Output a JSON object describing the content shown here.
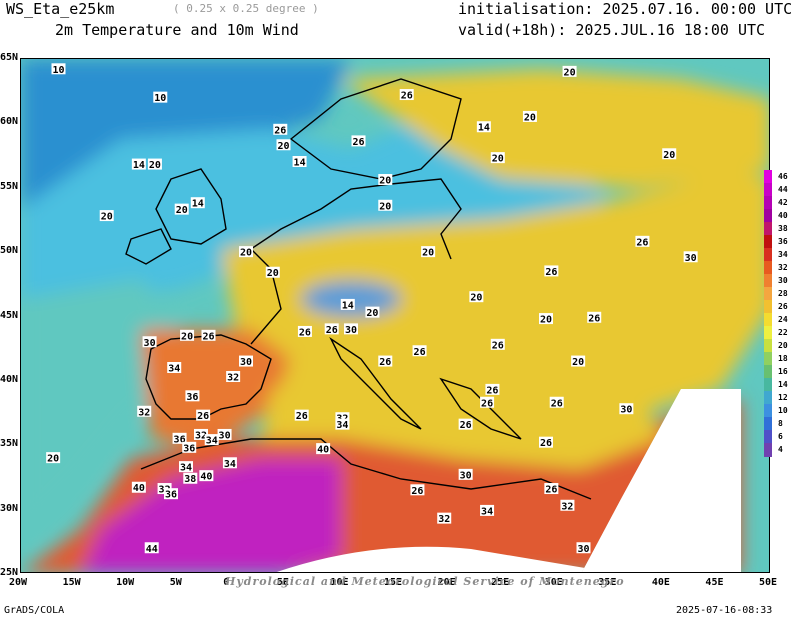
{
  "header": {
    "model": "WS_Eta_e25km",
    "resolution": "( 0.25 x 0.25 degree )",
    "field": "2m Temperature and 10m Wind",
    "init": "initialisation: 2025.07.16. 00:00 UTC",
    "valid": "valid(+18h): 2025.JUL.16 18:00 UTC"
  },
  "footer": {
    "software": "GrADS/COLA",
    "timestamp": "2025-07-16-08:33",
    "credit": "Hydrological and Meteorological Service of Montenegro"
  },
  "axes": {
    "x_ticks": [
      "20W",
      "15W",
      "10W",
      "5W",
      "0",
      "5E",
      "10E",
      "15E",
      "20E",
      "25E",
      "30E",
      "35E",
      "40E",
      "45E",
      "50E"
    ],
    "y_ticks": [
      "65N",
      "60N",
      "55N",
      "50N",
      "45N",
      "40N",
      "35N",
      "30N",
      "25N"
    ],
    "lon_range": [
      -20,
      50
    ],
    "lat_range": [
      25,
      65
    ]
  },
  "colorbar": {
    "levels": [
      "46",
      "44",
      "42",
      "40",
      "38",
      "36",
      "34",
      "32",
      "30",
      "28",
      "26",
      "24",
      "22",
      "20",
      "18",
      "16",
      "14",
      "12",
      "10",
      "8",
      "6",
      "4"
    ],
    "colors": [
      "#e000e0",
      "#c800c8",
      "#b400b4",
      "#a000a0",
      "#c0166b",
      "#c01010",
      "#d83020",
      "#e85a20",
      "#f08030",
      "#f4a640",
      "#f2c030",
      "#f4dc30",
      "#eef040",
      "#c8e040",
      "#90d060",
      "#68c070",
      "#48b8a0",
      "#40a8d0",
      "#3c90e0",
      "#3070d8",
      "#5050c8",
      "#7040b0"
    ]
  },
  "regions": {
    "land_fill": "#e8c830",
    "north_sea": "#4cc0e0",
    "atlantic_far": "#2c90d0",
    "atlantic_near": "#60c8c0",
    "sahara_hot": "#c020c0",
    "north_africa": "#e05a30",
    "iberia": "#e87830",
    "alps_cool": "#5a9cd8"
  },
  "labels": [
    {
      "t": "10",
      "lon": -16.5,
      "lat": 64.2
    },
    {
      "t": "10",
      "lon": -7,
      "lat": 62
    },
    {
      "t": "14",
      "lon": -9,
      "lat": 56.8
    },
    {
      "t": "20",
      "lon": -7.5,
      "lat": 56.8
    },
    {
      "t": "14",
      "lon": -3.5,
      "lat": 53.8
    },
    {
      "t": "20",
      "lon": -5,
      "lat": 53.3
    },
    {
      "t": "20",
      "lon": -12,
      "lat": 52.8
    },
    {
      "t": "20",
      "lon": 1,
      "lat": 50
    },
    {
      "t": "20",
      "lon": 3.5,
      "lat": 48.4
    },
    {
      "t": "26",
      "lon": 16,
      "lat": 62.2
    },
    {
      "t": "26",
      "lon": 4.2,
      "lat": 59.5
    },
    {
      "t": "20",
      "lon": 4.5,
      "lat": 58.3
    },
    {
      "t": "14",
      "lon": 6,
      "lat": 57
    },
    {
      "t": "26",
      "lon": 11.5,
      "lat": 58.6
    },
    {
      "t": "20",
      "lon": 14,
      "lat": 55.6
    },
    {
      "t": "20",
      "lon": 14,
      "lat": 53.6
    },
    {
      "t": "14",
      "lon": 23.2,
      "lat": 59.7
    },
    {
      "t": "20",
      "lon": 27.5,
      "lat": 60.5
    },
    {
      "t": "20",
      "lon": 31.2,
      "lat": 64
    },
    {
      "t": "20",
      "lon": 24.5,
      "lat": 57.3
    },
    {
      "t": "20",
      "lon": 40.5,
      "lat": 57.6
    },
    {
      "t": "20",
      "lon": 18,
      "lat": 50
    },
    {
      "t": "20",
      "lon": 22.5,
      "lat": 46.5
    },
    {
      "t": "26",
      "lon": 29.5,
      "lat": 48.5
    },
    {
      "t": "26",
      "lon": 38,
      "lat": 50.8
    },
    {
      "t": "30",
      "lon": 42.5,
      "lat": 49.6
    },
    {
      "t": "20",
      "lon": 29,
      "lat": 44.8
    },
    {
      "t": "26",
      "lon": 33.5,
      "lat": 44.9
    },
    {
      "t": "20",
      "lon": 32,
      "lat": 41.5
    },
    {
      "t": "14",
      "lon": 10.5,
      "lat": 45.9
    },
    {
      "t": "20",
      "lon": 12.8,
      "lat": 45.3
    },
    {
      "t": "26",
      "lon": 6.5,
      "lat": 43.8
    },
    {
      "t": "26",
      "lon": 9,
      "lat": 44
    },
    {
      "t": "30",
      "lon": 10.8,
      "lat": 44
    },
    {
      "t": "26",
      "lon": 14,
      "lat": 41.5
    },
    {
      "t": "26",
      "lon": 17.2,
      "lat": 42.3
    },
    {
      "t": "26",
      "lon": 24.5,
      "lat": 42.8
    },
    {
      "t": "26",
      "lon": 24,
      "lat": 39.3
    },
    {
      "t": "26",
      "lon": 23.5,
      "lat": 38.3
    },
    {
      "t": "26",
      "lon": 30,
      "lat": 38.3
    },
    {
      "t": "26",
      "lon": 21.5,
      "lat": 36.6
    },
    {
      "t": "30",
      "lon": 36.5,
      "lat": 37.8
    },
    {
      "t": "26",
      "lon": 29,
      "lat": 35.2
    },
    {
      "t": "26",
      "lon": 6.2,
      "lat": 37.3
    },
    {
      "t": "30",
      "lon": -8,
      "lat": 43
    },
    {
      "t": "20",
      "lon": -4.5,
      "lat": 43.5
    },
    {
      "t": "26",
      "lon": -2.5,
      "lat": 43.5
    },
    {
      "t": "30",
      "lon": 1,
      "lat": 41.5
    },
    {
      "t": "34",
      "lon": -5.7,
      "lat": 41
    },
    {
      "t": "32",
      "lon": -0.2,
      "lat": 40.3
    },
    {
      "t": "36",
      "lon": -4,
      "lat": 38.8
    },
    {
      "t": "32",
      "lon": -8.5,
      "lat": 37.6
    },
    {
      "t": "26",
      "lon": -3,
      "lat": 37.3
    },
    {
      "t": "36",
      "lon": -5.2,
      "lat": 35.5
    },
    {
      "t": "32",
      "lon": -3.2,
      "lat": 35.8
    },
    {
      "t": "34",
      "lon": -2.2,
      "lat": 35.4
    },
    {
      "t": "30",
      "lon": -1,
      "lat": 35.8
    },
    {
      "t": "36",
      "lon": -4.3,
      "lat": 34.8
    },
    {
      "t": "34",
      "lon": -4.6,
      "lat": 33.3
    },
    {
      "t": "38",
      "lon": -4.2,
      "lat": 32.4
    },
    {
      "t": "40",
      "lon": -2.7,
      "lat": 32.6
    },
    {
      "t": "34",
      "lon": -0.5,
      "lat": 33.6
    },
    {
      "t": "40",
      "lon": -9,
      "lat": 31.7
    },
    {
      "t": "32",
      "lon": -6.6,
      "lat": 31.6
    },
    {
      "t": "36",
      "lon": -6,
      "lat": 31.2
    },
    {
      "t": "44",
      "lon": -7.8,
      "lat": 27
    },
    {
      "t": "20",
      "lon": -17,
      "lat": 34
    },
    {
      "t": "32",
      "lon": 10,
      "lat": 37.1
    },
    {
      "t": "34",
      "lon": 10,
      "lat": 36.6
    },
    {
      "t": "40",
      "lon": 8.2,
      "lat": 34.7
    },
    {
      "t": "26",
      "lon": 17,
      "lat": 31.5
    },
    {
      "t": "30",
      "lon": 21.5,
      "lat": 32.7
    },
    {
      "t": "32",
      "lon": 19.5,
      "lat": 29.3
    },
    {
      "t": "34",
      "lon": 23.5,
      "lat": 29.9
    },
    {
      "t": "26",
      "lon": 29.5,
      "lat": 31.6
    },
    {
      "t": "32",
      "lon": 31,
      "lat": 30.3
    },
    {
      "t": "30",
      "lon": 32.5,
      "lat": 27
    }
  ]
}
